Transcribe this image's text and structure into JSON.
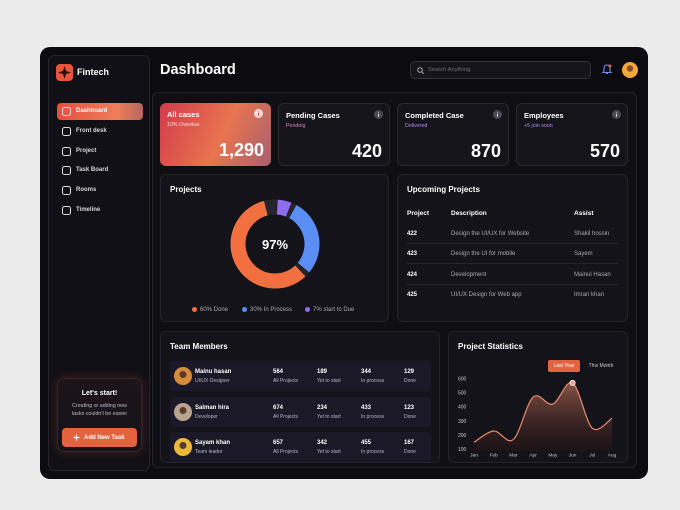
{
  "sidebar": {
    "brand": "Fintech",
    "nav": [
      "Dashboard",
      "Front desk",
      "Project",
      "Task Board",
      "Rooms",
      "Timeline"
    ],
    "cta": {
      "title": "Let's start!",
      "text": "Creating or adding new tasks couldn't be easier",
      "button": "Add New Task"
    }
  },
  "header": {
    "title": "Dashboard",
    "search_placeholder": "Search Anything"
  },
  "stats": [
    {
      "title": "All cases",
      "subtitle": "10% Overdue",
      "value": "1,290"
    },
    {
      "title": "Pending Cases",
      "subtitle": "Pending",
      "value": "420"
    },
    {
      "title": "Completed Case",
      "subtitle": "Delivered",
      "value": "870"
    },
    {
      "title": "Employees",
      "subtitle": "+5 join soon",
      "value": "570"
    }
  ],
  "projects": {
    "title": "Projects",
    "center_label": "97%",
    "segments": [
      {
        "label": "7% start to Due",
        "value": 7,
        "color": "#8f6cf0"
      },
      {
        "label": "30% In Process",
        "value": 30,
        "color": "#5b8ef5"
      },
      {
        "label": "60% Done",
        "value": 60,
        "color": "#f2703f"
      }
    ]
  },
  "upcoming": {
    "title": "Upcoming Projects",
    "columns": [
      "Project",
      "Description",
      "Assist"
    ],
    "rows": [
      [
        "422",
        "Design the UI/UX for Website",
        "Shakil hossin"
      ],
      [
        "423",
        "Design the UI for mobile",
        "Sayem"
      ],
      [
        "424",
        "Development",
        "Mainul Hasan"
      ],
      [
        "425",
        "UI/UX Design for Web app",
        "Imran khan"
      ]
    ]
  },
  "team": {
    "title": "Team Members",
    "members": [
      {
        "name": "Mainu hasan",
        "role": "UI/UX Designer",
        "stats": [
          {
            "value": "564",
            "label": "All Projects"
          },
          {
            "value": "189",
            "label": "Yet to start"
          },
          {
            "value": "344",
            "label": "In process"
          },
          {
            "value": "129",
            "label": "Done"
          }
        ]
      },
      {
        "name": "Salman hira",
        "role": "Developer",
        "stats": [
          {
            "value": "674",
            "label": "All Projects"
          },
          {
            "value": "234",
            "label": "Yet to start"
          },
          {
            "value": "433",
            "label": "In process"
          },
          {
            "value": "123",
            "label": "Done"
          }
        ]
      },
      {
        "name": "Sayam khan",
        "role": "Team leader",
        "stats": [
          {
            "value": "657",
            "label": "All Projects"
          },
          {
            "value": "342",
            "label": "Yet to start"
          },
          {
            "value": "455",
            "label": "In process"
          },
          {
            "value": "167",
            "label": "Done"
          }
        ]
      }
    ]
  },
  "statistics": {
    "title": "Project Statistics",
    "tabs": [
      "Last Year",
      "This Month"
    ],
    "chart_data": {
      "type": "area",
      "categories": [
        "Jan",
        "Feb",
        "Mar",
        "Apr",
        "May",
        "Jun",
        "Jul",
        "Aug"
      ],
      "values": [
        150,
        230,
        170,
        470,
        420,
        570,
        250,
        320
      ],
      "color": "#e98a6e",
      "ylim": [
        60,
        640
      ],
      "yticks": [
        100,
        200,
        300,
        400,
        500,
        600
      ]
    }
  }
}
